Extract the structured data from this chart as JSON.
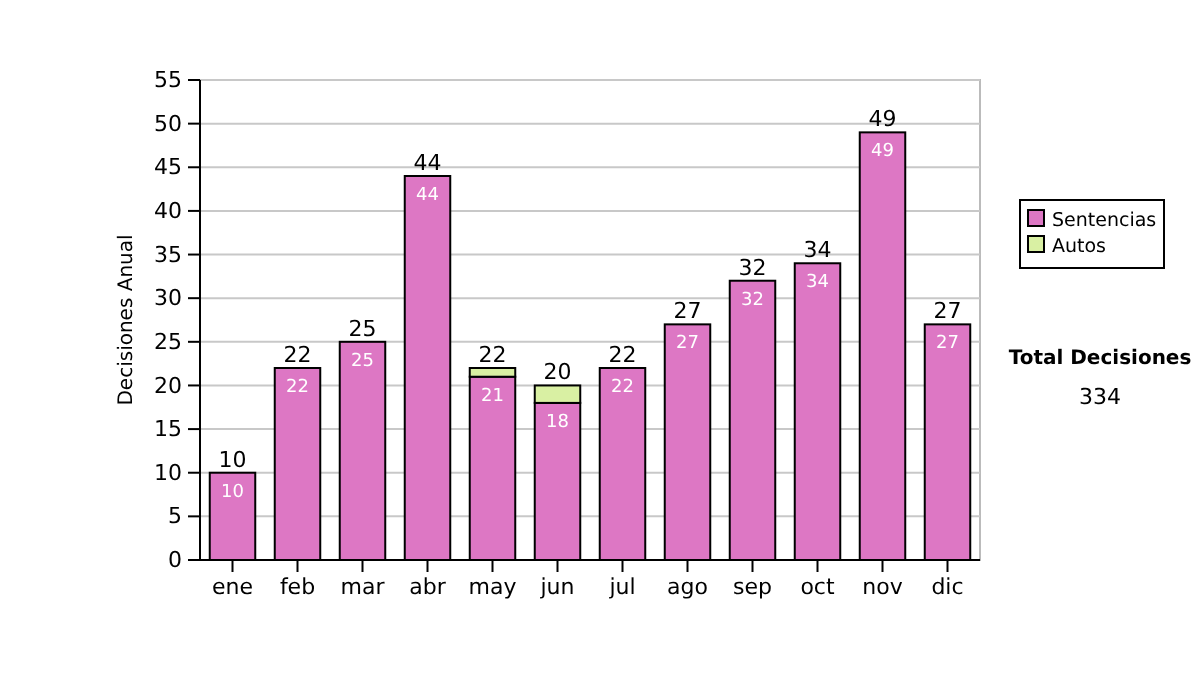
{
  "chart_data": {
    "type": "bar",
    "stacked": true,
    "ylabel": "Decisiones Anual",
    "categories": [
      "ene",
      "feb",
      "mar",
      "abr",
      "may",
      "jun",
      "jul",
      "ago",
      "sep",
      "oct",
      "nov",
      "dic"
    ],
    "series": [
      {
        "name": "Sentencias",
        "color": "#dd77c4",
        "values": [
          10,
          22,
          25,
          44,
          21,
          18,
          22,
          27,
          32,
          34,
          49,
          27
        ],
        "value_labels": [
          "10",
          "22",
          "25",
          "44",
          "21",
          "18",
          "22",
          "27",
          "32",
          "34",
          "49",
          "27"
        ]
      },
      {
        "name": "Autos",
        "color": "#d9f0a3",
        "values": [
          0,
          0,
          0,
          0,
          1,
          2,
          0,
          0,
          0,
          0,
          0,
          0
        ]
      }
    ],
    "totals": [
      "10",
      "22",
      "25",
      "44",
      "22",
      "20",
      "22",
      "27",
      "32",
      "34",
      "49",
      "27"
    ],
    "ylim": [
      0,
      55
    ],
    "yticks": [
      0,
      5,
      10,
      15,
      20,
      25,
      30,
      35,
      40,
      45,
      50,
      55
    ],
    "grid": "y",
    "legend": "right",
    "annotations": [
      "Total Decisiones",
      "334"
    ]
  }
}
